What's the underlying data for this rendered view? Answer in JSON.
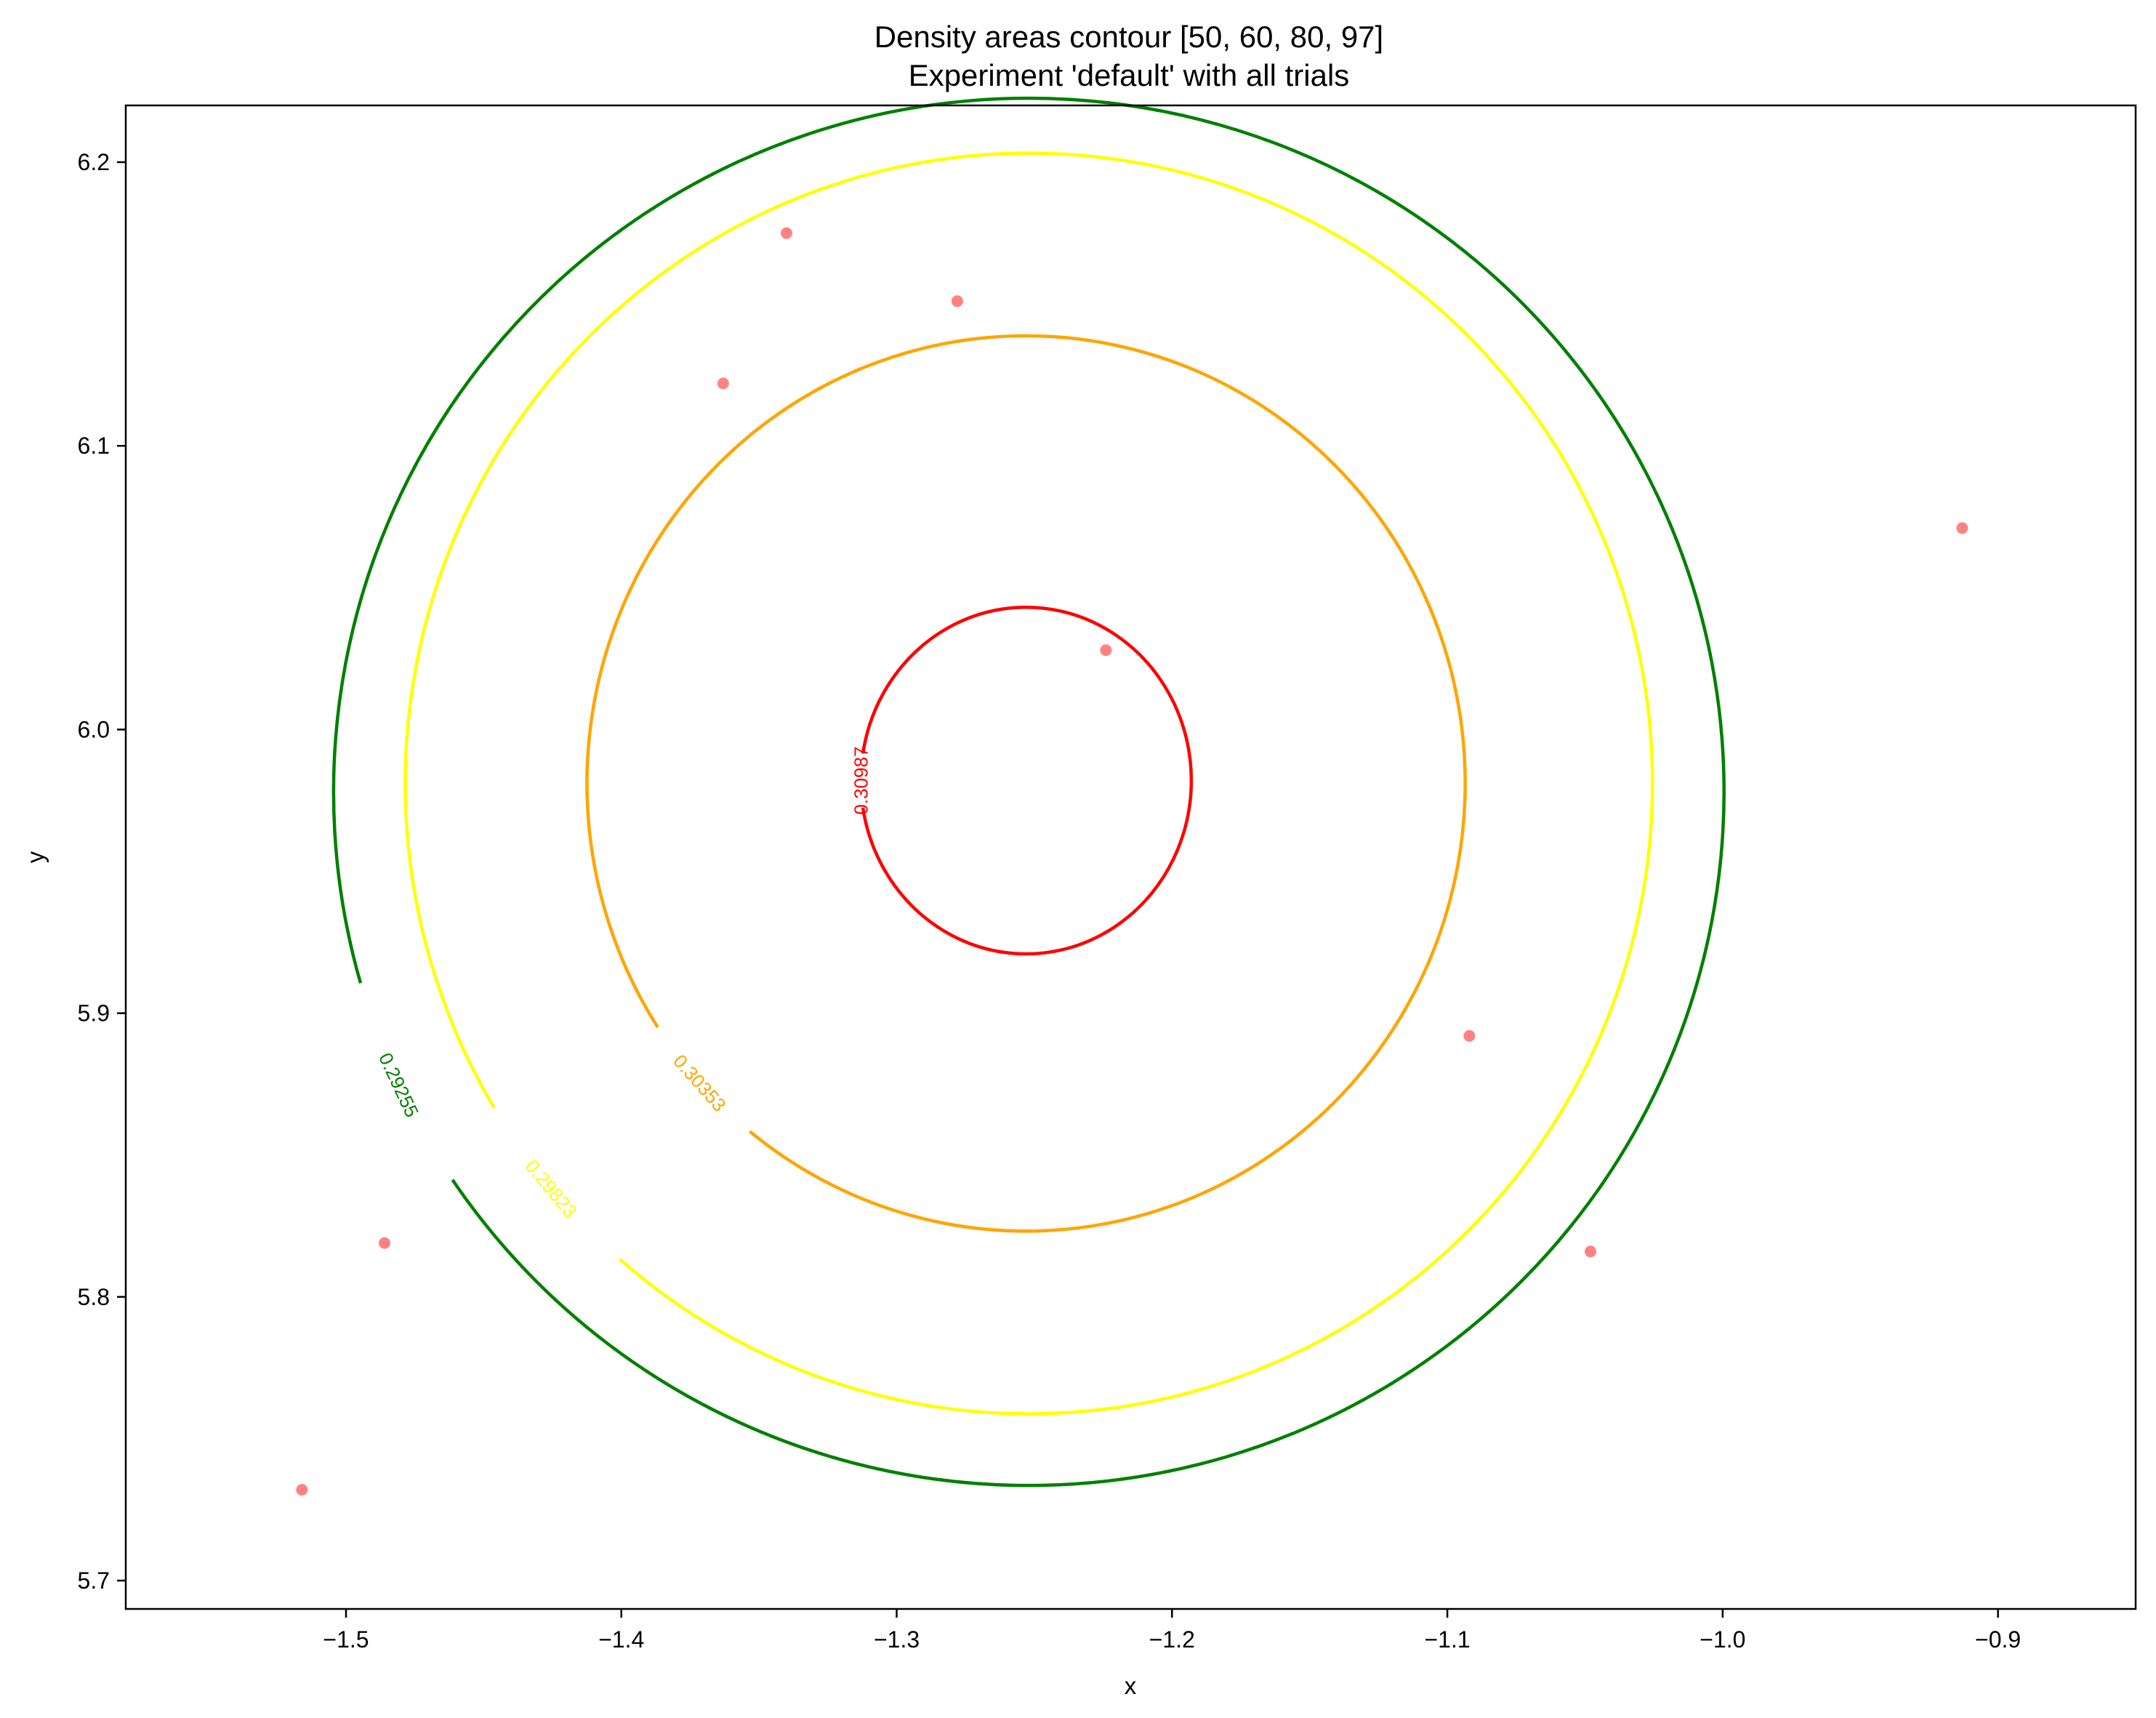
{
  "chart_data": {
    "type": "contour",
    "title": "Density areas contour [50, 60, 80, 97]",
    "subtitle": "Experiment 'default' with all trials",
    "xlabel": "x",
    "ylabel": "y",
    "xlim": [
      -1.58,
      -0.85
    ],
    "ylim": [
      5.69,
      6.22
    ],
    "xticks": [
      -1.5,
      -1.4,
      -1.3,
      -1.2,
      -1.1,
      -1.0,
      -0.9
    ],
    "xtick_labels": [
      "−1.5",
      "−1.4",
      "−1.3",
      "−1.2",
      "−1.1",
      "−1.0",
      "−0.9"
    ],
    "yticks": [
      5.7,
      5.8,
      5.9,
      6.0,
      6.1,
      6.2
    ],
    "ytick_labels": [
      "5.7",
      "5.8",
      "5.9",
      "6.0",
      "6.1",
      "6.2"
    ],
    "grid": false,
    "contours": [
      {
        "level_label": "0.29255",
        "color": "#008000",
        "cx": -1.252,
        "cy": 5.978,
        "rx": 0.2525,
        "ry": 0.2445,
        "label_angle_deg": 205
      },
      {
        "level_label": "0.29823",
        "color": "#ffff00",
        "cx": -1.252,
        "cy": 5.981,
        "rx": 0.2265,
        "ry": 0.2222,
        "label_angle_deg": 220
      },
      {
        "level_label": "0.30353",
        "color": "#ffa500",
        "cx": -1.253,
        "cy": 5.981,
        "rx": 0.1595,
        "ry": 0.1578,
        "label_angle_deg": 222
      },
      {
        "level_label": "0.30987",
        "color": "#ff0000",
        "cx": -1.253,
        "cy": 5.982,
        "rx": 0.06,
        "ry": 0.0611,
        "label_angle_deg": 180
      }
    ],
    "points": {
      "color": "#ff4d4d",
      "x": [
        -1.34,
        -1.278,
        -1.363,
        -0.913,
        -1.224,
        -1.092,
        -1.048,
        -1.486,
        -1.516
      ],
      "y": [
        6.175,
        6.151,
        6.122,
        6.071,
        6.028,
        5.892,
        5.816,
        5.819,
        5.732
      ]
    }
  }
}
